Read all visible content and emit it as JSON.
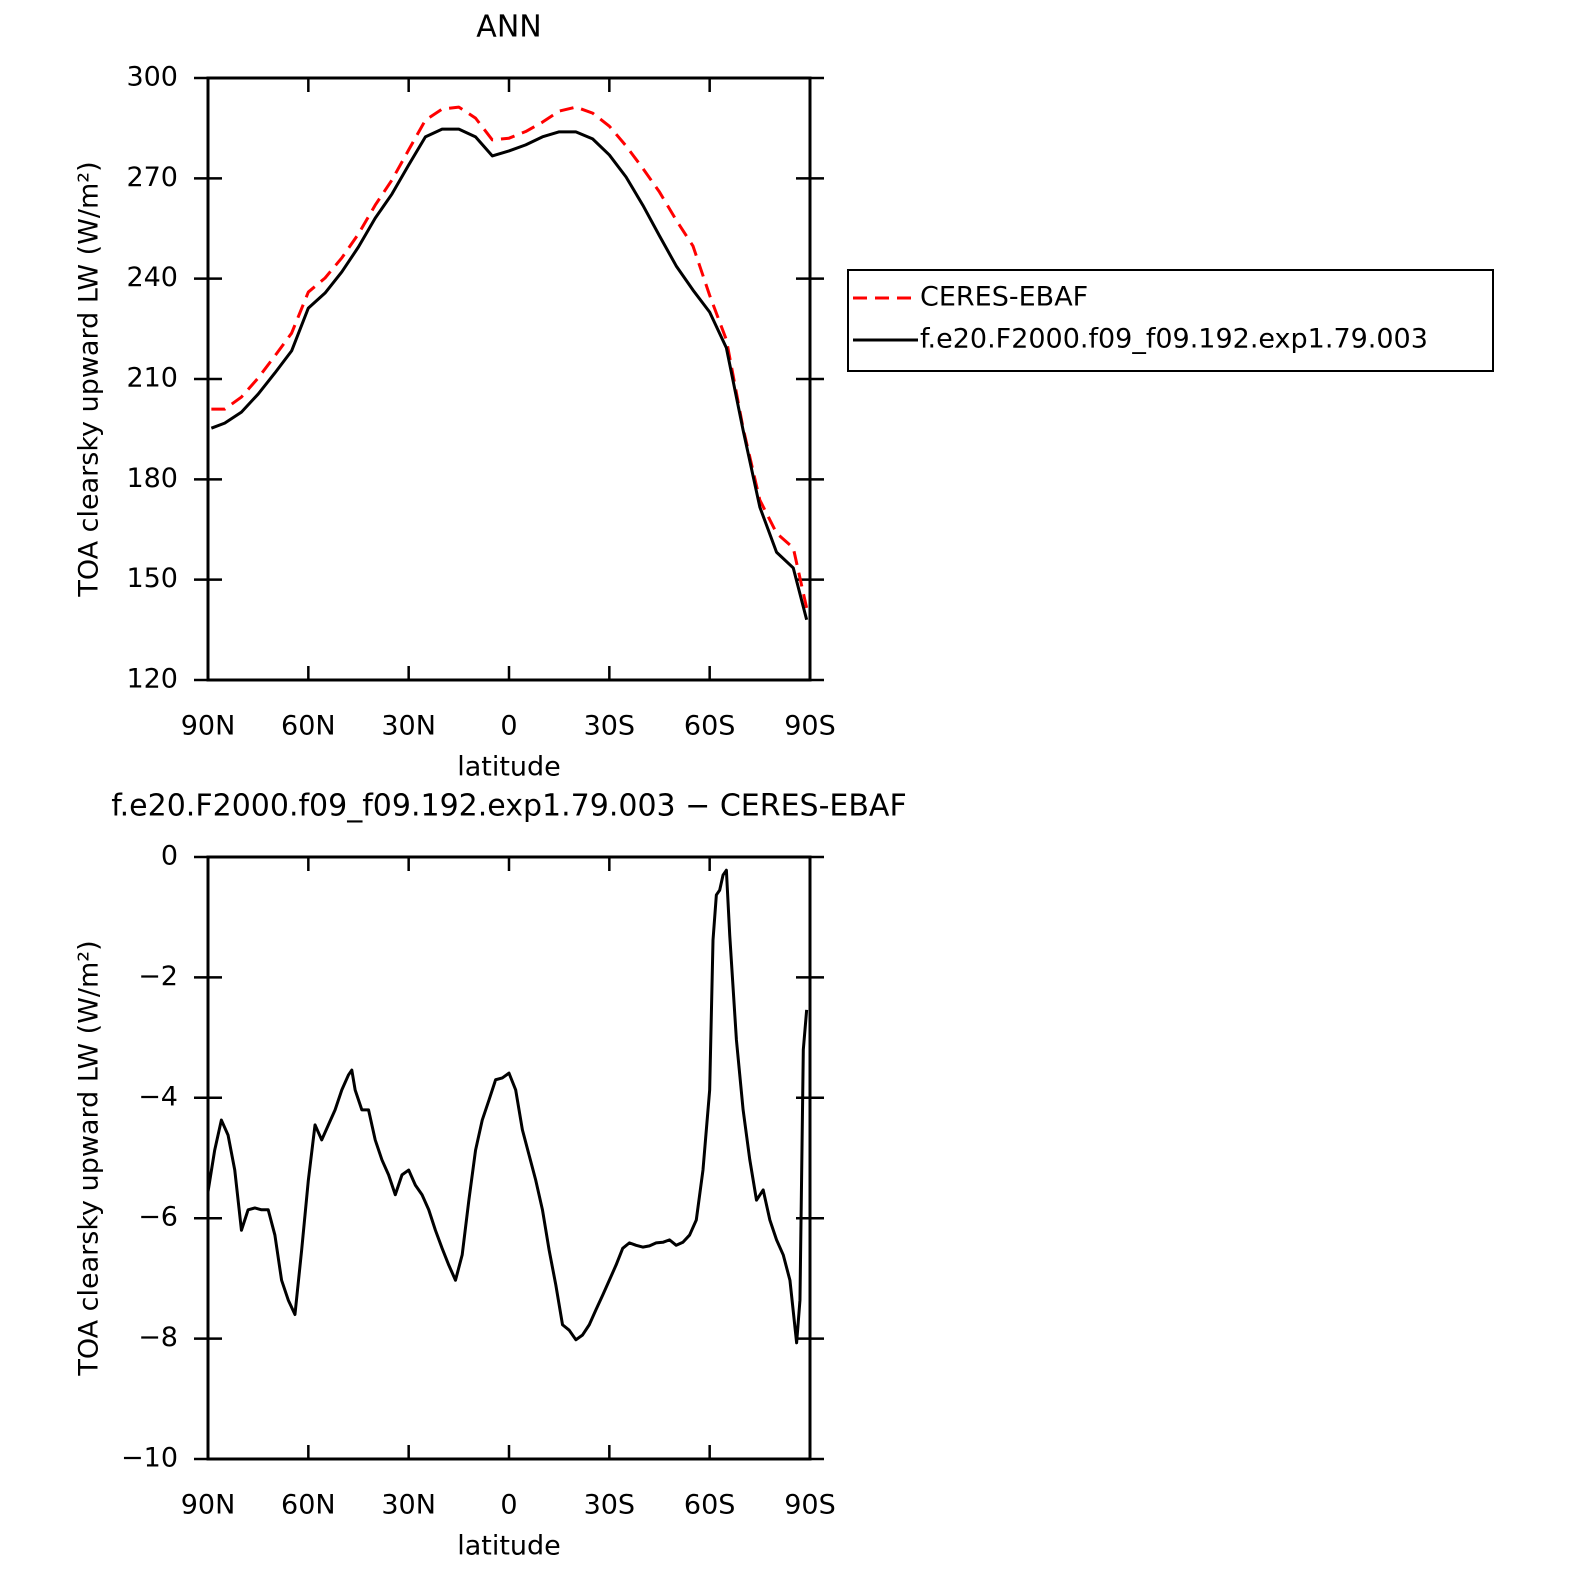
{
  "chart_data": [
    {
      "type": "line",
      "title": "ANN",
      "xlabel": "latitude",
      "ylabel": "TOA clearsky upward LW (W/m²)",
      "xlim": [
        90,
        -90
      ],
      "xticks": [
        {
          "value": 90,
          "label": "90N"
        },
        {
          "value": 60,
          "label": "60N"
        },
        {
          "value": 30,
          "label": "30N"
        },
        0,
        {
          "value": -30,
          "label": "30S"
        },
        {
          "value": -60,
          "label": "60S"
        },
        {
          "value": -90,
          "label": "90S"
        }
      ],
      "ylim": [
        120,
        300
      ],
      "yticks": [
        120,
        150,
        180,
        210,
        240,
        270,
        300
      ],
      "x": [
        89,
        85,
        80,
        75,
        70,
        65,
        60,
        55,
        50,
        45,
        40,
        35,
        30,
        25,
        20,
        15,
        10,
        5,
        0,
        -5,
        -10,
        -15,
        -20,
        -25,
        -30,
        -35,
        -40,
        -45,
        -50,
        -55,
        -60,
        -65,
        -70,
        -75,
        -80,
        -85,
        -89
      ],
      "series": [
        {
          "name": "CERES-EBAF",
          "color": "#ff0000",
          "linestyle": "dashed",
          "values": [
            201,
            201,
            204.6,
            210.3,
            216.9,
            223.7,
            236,
            240.2,
            246.2,
            253.4,
            262,
            269.5,
            278.5,
            287.4,
            290.7,
            291.3,
            288,
            281.5,
            282,
            284,
            286.8,
            290.1,
            291.3,
            289.5,
            285.6,
            279.7,
            273,
            265.9,
            257.5,
            249.8,
            235,
            221.7,
            195.3,
            173.8,
            163.9,
            159.5,
            141.5
          ]
        },
        {
          "name": "f.e20.F2000.f09_f09.192.exp1.79.003",
          "color": "#000000",
          "linestyle": "solid",
          "values": [
            195.3,
            196.8,
            200.1,
            205.5,
            211.8,
            218.4,
            231.2,
            235.7,
            242,
            249.5,
            258.1,
            265.3,
            274,
            282.4,
            284.7,
            284.7,
            282.4,
            276.7,
            278.2,
            280,
            282.4,
            283.9,
            283.9,
            281.8,
            277,
            270.4,
            262,
            252.8,
            243.8,
            236.6,
            230,
            219.3,
            194.7,
            171.7,
            158.2,
            153.5,
            138
          ]
        }
      ],
      "legend": "right"
    },
    {
      "type": "line",
      "title": "f.e20.F2000.f09_f09.192.exp1.79.003 − CERES-EBAF",
      "xlabel": "latitude",
      "ylabel": "TOA clearsky upward LW (W/m²)",
      "xlim": [
        90,
        -90
      ],
      "xticks": [
        {
          "value": 90,
          "label": "90N"
        },
        {
          "value": 60,
          "label": "60N"
        },
        {
          "value": 30,
          "label": "30N"
        },
        0,
        {
          "value": -30,
          "label": "30S"
        },
        {
          "value": -60,
          "label": "60S"
        },
        {
          "value": -90,
          "label": "90S"
        }
      ],
      "ylim": [
        -10,
        0
      ],
      "yticks": [
        {
          "value": -10,
          "label": "−10"
        },
        {
          "value": -8,
          "label": "−8"
        },
        {
          "value": -6,
          "label": "−6"
        },
        {
          "value": -4,
          "label": "−4"
        },
        {
          "value": -2,
          "label": "−2"
        },
        0
      ],
      "x": [
        90,
        88,
        86,
        84,
        82,
        80,
        78,
        76,
        74,
        72,
        70,
        68,
        66,
        64,
        62,
        60,
        58,
        56,
        54,
        52,
        50,
        48,
        47,
        46,
        44,
        42,
        40,
        38,
        36,
        34,
        32,
        30,
        28,
        26,
        24,
        22,
        20,
        18,
        16,
        14,
        12,
        10,
        8,
        6,
        4,
        2,
        0,
        -2,
        -4,
        -6,
        -8,
        -10,
        -12,
        -14,
        -16,
        -18,
        -20,
        -22,
        -24,
        -26,
        -28,
        -30,
        -32,
        -34,
        -36,
        -38,
        -40,
        -42,
        -44,
        -46,
        -48,
        -50,
        -52,
        -54,
        -56,
        -58,
        -60,
        -61,
        -62,
        -63,
        -64,
        -65,
        -66,
        -68,
        -70,
        -72,
        -74,
        -76,
        -78,
        -80,
        -82,
        -84,
        -86,
        -87,
        -88,
        -89
      ],
      "color": "#000000",
      "values": [
        -5.56,
        -4.87,
        -4.37,
        -4.62,
        -5.2,
        -6.2,
        -5.86,
        -5.83,
        -5.86,
        -5.86,
        -6.28,
        -7.03,
        -7.36,
        -7.6,
        -6.53,
        -5.37,
        -4.45,
        -4.7,
        -4.45,
        -4.2,
        -3.87,
        -3.62,
        -3.54,
        -3.87,
        -4.2,
        -4.2,
        -4.7,
        -5.03,
        -5.28,
        -5.61,
        -5.28,
        -5.2,
        -5.45,
        -5.61,
        -5.86,
        -6.2,
        -6.5,
        -6.78,
        -7.03,
        -6.61,
        -5.7,
        -4.87,
        -4.37,
        -4.04,
        -3.7,
        -3.67,
        -3.59,
        -3.87,
        -4.53,
        -4.95,
        -5.37,
        -5.86,
        -6.53,
        -7.11,
        -7.77,
        -7.86,
        -8.02,
        -7.94,
        -7.77,
        -7.52,
        -7.28,
        -7.03,
        -6.78,
        -6.5,
        -6.41,
        -6.45,
        -6.48,
        -6.46,
        -6.41,
        -6.4,
        -6.36,
        -6.45,
        -6.4,
        -6.28,
        -6.03,
        -5.2,
        -3.87,
        -1.38,
        -0.63,
        -0.55,
        -0.3,
        -0.22,
        -1.3,
        -3.04,
        -4.2,
        -5.03,
        -5.7,
        -5.53,
        -6.03,
        -6.36,
        -6.61,
        -7.03,
        -8.07,
        -7.36,
        -3.2,
        -2.54
      ]
    }
  ]
}
